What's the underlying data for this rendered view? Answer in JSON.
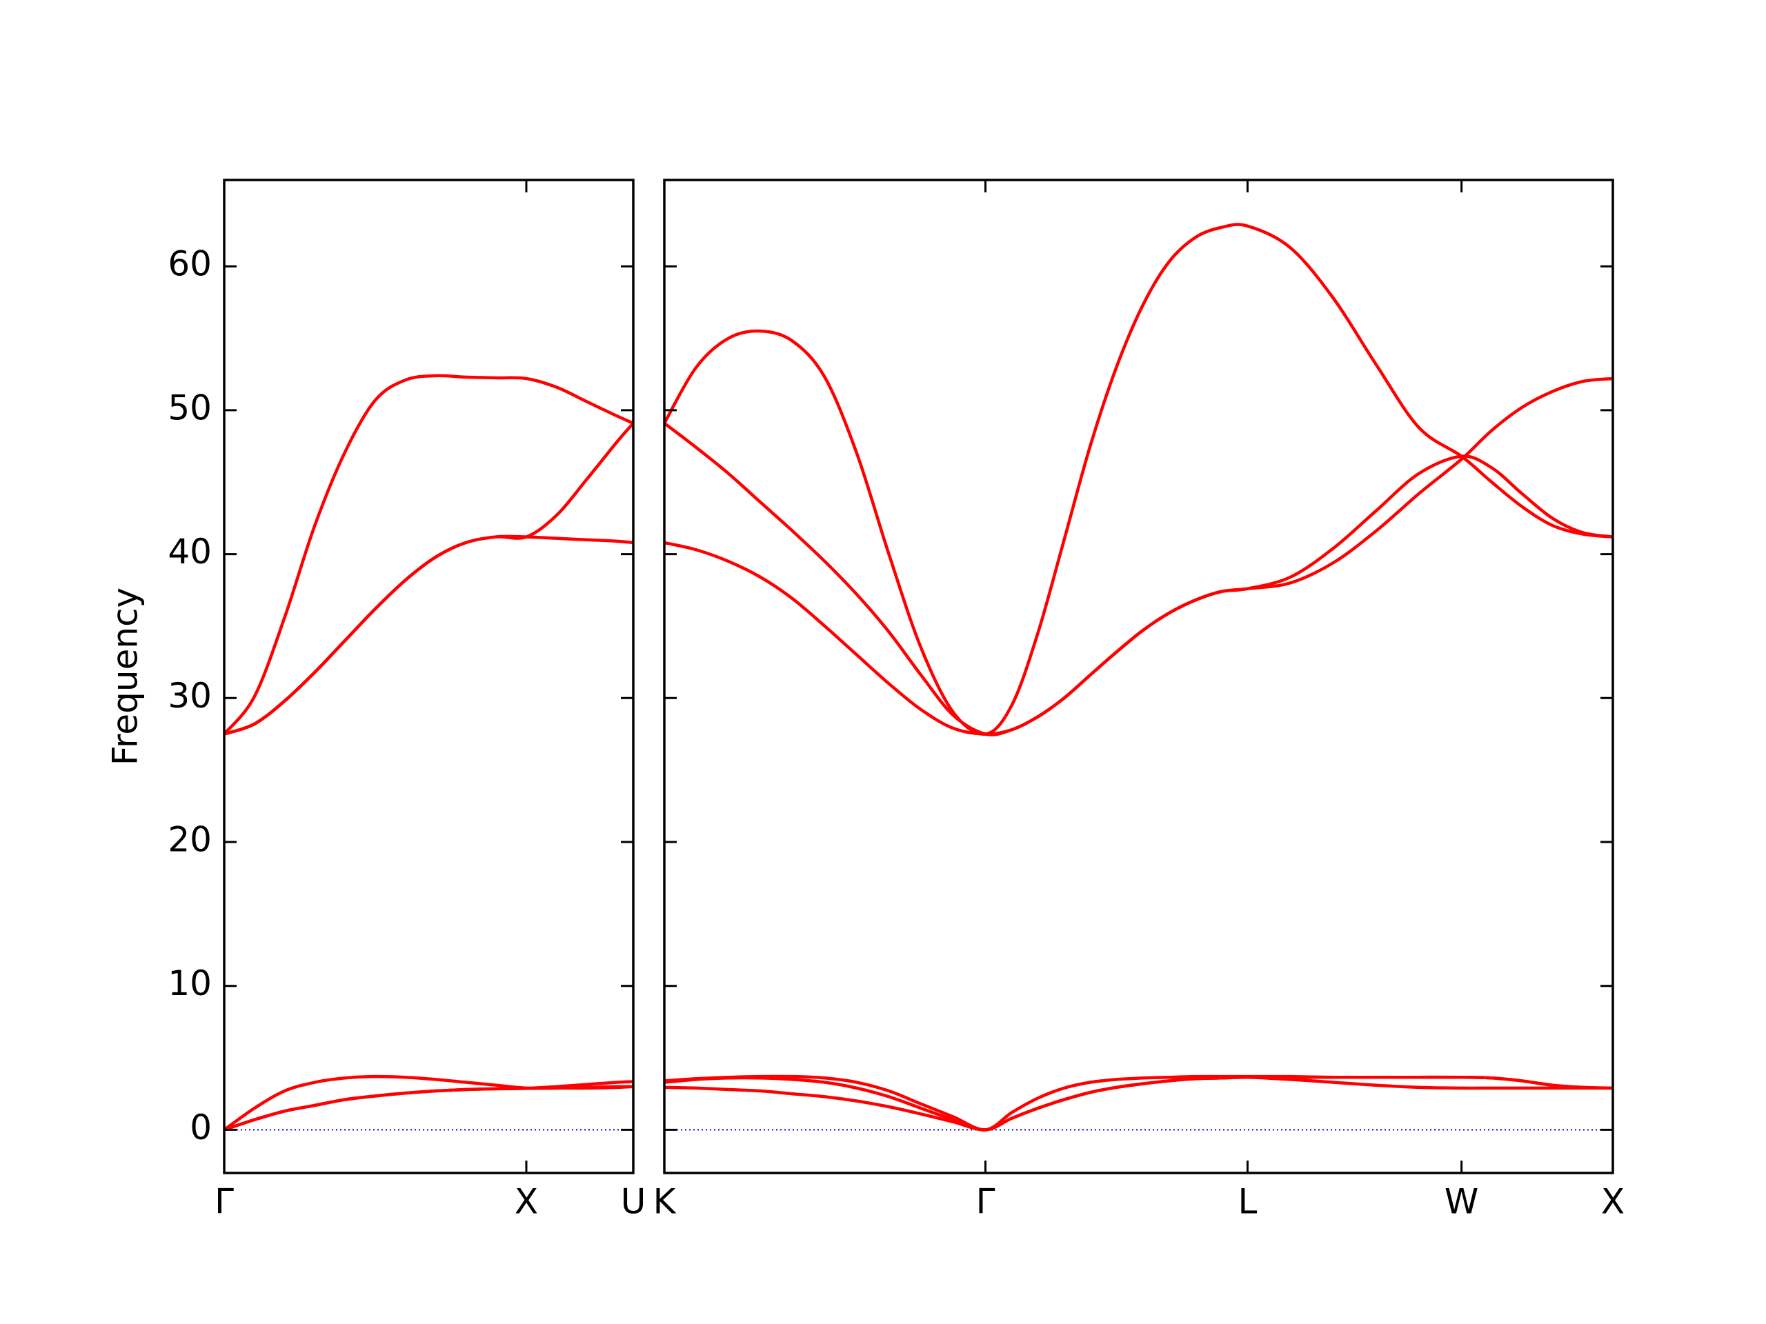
{
  "chart_data": [
    {
      "type": "line",
      "ylabel": "Frequency",
      "xlim": [
        0,
        1.354
      ],
      "ylim": [
        -3,
        66
      ],
      "xticks": [
        {
          "value": 0,
          "label": "Γ"
        },
        {
          "value": 1,
          "label": "X"
        },
        {
          "value": 1.354,
          "label": "U"
        }
      ],
      "yticks": [
        0,
        10,
        20,
        30,
        40,
        50,
        60
      ],
      "show_ytick_labels": true,
      "zero_line": {
        "value": 0,
        "color": "#0000cc",
        "style": "dotted"
      },
      "x": [
        0,
        0.1,
        0.2,
        0.3,
        0.4,
        0.5,
        0.6,
        0.7,
        0.8,
        0.9,
        1,
        1.1,
        1.2,
        1.3,
        1.354
      ],
      "series": [
        {
          "color": "#ff0000",
          "values": [
            0,
            0.7,
            1.3,
            1.7,
            2.1,
            2.35,
            2.55,
            2.7,
            2.8,
            2.85,
            2.88,
            2.9,
            2.95,
            3.0,
            3.0
          ]
        },
        {
          "color": "#ff0000",
          "values": [
            0,
            0.7,
            1.3,
            1.7,
            2.1,
            2.35,
            2.55,
            2.7,
            2.8,
            2.85,
            2.88,
            3.0,
            3.15,
            3.3,
            3.35
          ]
        },
        {
          "color": "#ff0000",
          "values": [
            0,
            1.5,
            2.7,
            3.3,
            3.6,
            3.7,
            3.65,
            3.5,
            3.3,
            3.1,
            2.9,
            2.9,
            2.9,
            2.95,
            3.0
          ]
        },
        {
          "color": "#ff0000",
          "values": [
            27.5,
            30.1,
            35.6,
            42,
            47.1,
            50.7,
            52.1,
            52.4,
            52.3,
            52.25,
            52.2,
            51.6,
            50.6,
            49.6,
            49.1
          ]
        },
        {
          "color": "#ff0000",
          "values": [
            27.5,
            28.2,
            29.8,
            31.8,
            34.0,
            36.2,
            38.2,
            39.8,
            40.8,
            41.2,
            41.2,
            41.1,
            41.0,
            40.9,
            40.8
          ]
        },
        {
          "color": "#ff0000",
          "values": [
            27.5,
            28.2,
            29.8,
            31.8,
            34.0,
            36.2,
            38.2,
            39.8,
            40.8,
            41.2,
            41.2,
            42.7,
            45.2,
            47.8,
            49.1
          ]
        }
      ]
    },
    {
      "type": "line",
      "xlim": [
        1.354,
        4.488
      ],
      "ylim": [
        -3,
        66
      ],
      "xticks": [
        {
          "value": 1.354,
          "label": "K"
        },
        {
          "value": 2.415,
          "label": "Γ"
        },
        {
          "value": 3.281,
          "label": "L"
        },
        {
          "value": 3.988,
          "label": "W"
        },
        {
          "value": 4.488,
          "label": "X"
        }
      ],
      "yticks": [
        0,
        10,
        20,
        30,
        40,
        50,
        60
      ],
      "show_ytick_labels": false,
      "zero_line": {
        "value": 0,
        "color": "#0000cc",
        "style": "dotted"
      },
      "x": [
        1.354,
        1.46,
        1.566,
        1.672,
        1.778,
        1.884,
        1.99,
        2.096,
        2.202,
        2.309,
        2.415,
        2.502,
        2.588,
        2.675,
        2.761,
        2.848,
        2.935,
        3.021,
        3.108,
        3.194,
        3.281,
        3.422,
        3.564,
        3.705,
        3.847,
        3.988,
        4.088,
        4.188,
        4.288,
        4.388,
        4.488
      ],
      "series": [
        {
          "color": "#ff0000",
          "values": [
            2.95,
            2.9,
            2.8,
            2.7,
            2.5,
            2.3,
            2.0,
            1.6,
            1.1,
            0.55,
            0,
            0.8,
            1.5,
            2.1,
            2.6,
            2.95,
            3.2,
            3.4,
            3.55,
            3.6,
            3.65,
            3.5,
            3.3,
            3.1,
            2.95,
            2.9,
            2.9,
            2.9,
            2.9,
            2.9,
            2.9
          ]
        },
        {
          "color": "#ff0000",
          "values": [
            3.3,
            3.5,
            3.6,
            3.6,
            3.5,
            3.3,
            2.9,
            2.3,
            1.5,
            0.7,
            0,
            0.8,
            1.5,
            2.1,
            2.6,
            2.95,
            3.2,
            3.4,
            3.55,
            3.6,
            3.65,
            3.65,
            3.65,
            3.65,
            3.65,
            3.65,
            3.6,
            3.4,
            3.1,
            2.95,
            2.9
          ]
        },
        {
          "color": "#ff0000",
          "values": [
            3.4,
            3.55,
            3.65,
            3.7,
            3.7,
            3.6,
            3.3,
            2.7,
            1.8,
            0.9,
            0,
            1.2,
            2.2,
            2.9,
            3.3,
            3.5,
            3.6,
            3.65,
            3.7,
            3.7,
            3.7,
            3.7,
            3.65,
            3.65,
            3.65,
            3.65,
            3.6,
            3.4,
            3.1,
            2.95,
            2.9
          ]
        },
        {
          "color": "#ff0000",
          "values": [
            49.1,
            53.0,
            55.0,
            55.5,
            54.8,
            52.3,
            47.0,
            40.0,
            33.5,
            29.0,
            27.5,
            29.5,
            34.5,
            41.0,
            47.5,
            53.0,
            57.3,
            60.3,
            62.0,
            62.7,
            62.8,
            61.3,
            57.8,
            53.2,
            48.8,
            46.8,
            45.0,
            43.3,
            42.0,
            41.4,
            41.2
          ]
        },
        {
          "color": "#ff0000",
          "values": [
            49.1,
            47.4,
            45.6,
            43.6,
            41.6,
            39.5,
            37.2,
            34.6,
            31.6,
            28.8,
            27.5,
            27.8,
            28.7,
            30.0,
            31.6,
            33.2,
            34.7,
            35.9,
            36.8,
            37.4,
            37.6,
            38.4,
            40.4,
            43.0,
            45.6,
            46.8,
            46.0,
            44.2,
            42.5,
            41.5,
            41.2
          ]
        },
        {
          "color": "#ff0000",
          "values": [
            40.8,
            40.3,
            39.5,
            38.4,
            36.9,
            35.0,
            33.0,
            31.0,
            29.2,
            27.9,
            27.5,
            27.8,
            28.7,
            30.0,
            31.6,
            33.2,
            34.7,
            35.9,
            36.8,
            37.4,
            37.6,
            38.0,
            39.4,
            41.6,
            44.2,
            46.6,
            48.6,
            50.2,
            51.3,
            52.0,
            52.2
          ]
        }
      ]
    }
  ]
}
